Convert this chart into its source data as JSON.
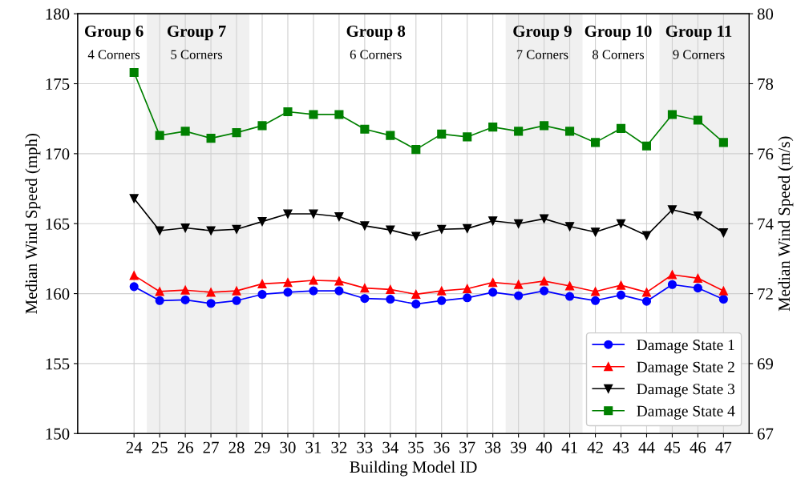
{
  "chart_data": {
    "type": "line",
    "xlabel": "Building Model ID",
    "ylabel": "Median Wind Speed (mph)",
    "y2label": "Median Wind Speed (m/s)",
    "x": [
      24,
      25,
      26,
      27,
      28,
      29,
      30,
      31,
      32,
      33,
      34,
      35,
      36,
      37,
      38,
      39,
      40,
      41,
      42,
      43,
      44,
      45,
      46,
      47
    ],
    "xlim": [
      21.8,
      48
    ],
    "xticks": [
      24,
      25,
      26,
      27,
      28,
      29,
      30,
      31,
      32,
      33,
      34,
      35,
      36,
      37,
      38,
      39,
      40,
      41,
      42,
      43,
      44,
      45,
      46,
      47
    ],
    "ylim": [
      150,
      180
    ],
    "yticks": [
      150,
      155,
      160,
      165,
      170,
      175,
      180
    ],
    "y2lim": [
      67.056,
      80.467
    ],
    "y2ticks": [
      {
        "value": 67.056,
        "label": "67"
      },
      {
        "value": 69.291,
        "label": "69"
      },
      {
        "value": 71.526,
        "label": "72"
      },
      {
        "value": 73.762,
        "label": "74"
      },
      {
        "value": 75.997,
        "label": "76"
      },
      {
        "value": 78.232,
        "label": "78"
      },
      {
        "value": 80.467,
        "label": "80"
      }
    ],
    "grid": true,
    "legend": "bottom right",
    "line_style": "solid",
    "series": [
      {
        "name": "Damage State 1",
        "color": "#0000ff",
        "marker": "circle",
        "values": [
          160.5,
          159.5,
          159.55,
          159.3,
          159.5,
          159.95,
          160.1,
          160.2,
          160.2,
          159.65,
          159.6,
          159.25,
          159.5,
          159.7,
          160.1,
          159.85,
          160.2,
          159.8,
          159.5,
          159.9,
          159.45,
          160.65,
          160.4,
          159.6
        ]
      },
      {
        "name": "Damage State 2",
        "color": "#ff0000",
        "marker": "triangle",
        "values": [
          161.3,
          160.15,
          160.25,
          160.1,
          160.2,
          160.7,
          160.8,
          160.95,
          160.9,
          160.4,
          160.3,
          159.95,
          160.2,
          160.35,
          160.8,
          160.65,
          160.9,
          160.55,
          160.15,
          160.6,
          160.1,
          161.35,
          161.1,
          160.2
        ]
      },
      {
        "name": "Damage State 3",
        "color": "#000000",
        "marker": "triangle_down",
        "values": [
          166.8,
          164.5,
          164.7,
          164.5,
          164.6,
          165.15,
          165.7,
          165.7,
          165.5,
          164.85,
          164.55,
          164.1,
          164.6,
          164.65,
          165.2,
          165.0,
          165.35,
          164.8,
          164.4,
          165.0,
          164.15,
          166.0,
          165.55,
          164.35
        ]
      },
      {
        "name": "Damage State 4",
        "color": "#008000",
        "marker": "square",
        "values": [
          175.8,
          171.3,
          171.6,
          171.1,
          171.5,
          172.0,
          173.0,
          172.8,
          172.8,
          171.75,
          171.3,
          170.3,
          171.4,
          171.2,
          171.9,
          171.6,
          172.0,
          171.6,
          170.8,
          171.8,
          170.55,
          172.8,
          172.4,
          170.8
        ]
      }
    ],
    "bands": [
      {
        "axis": "x",
        "from": 24.5,
        "to": 28.5,
        "color": "#f0f0f0"
      },
      {
        "axis": "x",
        "from": 38.5,
        "to": 41.5,
        "color": "#f0f0f0"
      },
      {
        "axis": "x",
        "from": 44.5,
        "to": 48,
        "color": "#f0f0f0"
      }
    ],
    "annotations": [
      "Group 6",
      "4 Corners",
      "Group 7",
      "5 Corners",
      "Group 8",
      "6 Corners",
      "Group 9",
      "7 Corners",
      "Group 10",
      "8 Corners",
      "Group 11",
      "9 Corners"
    ]
  }
}
